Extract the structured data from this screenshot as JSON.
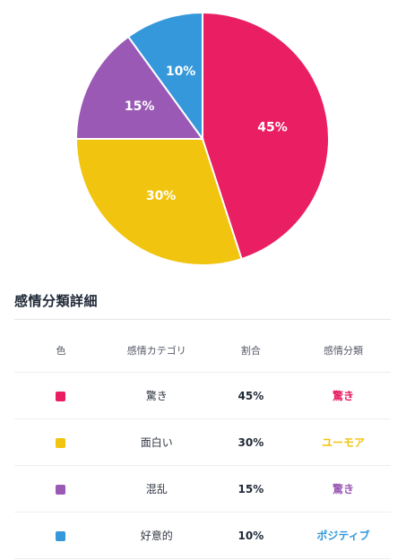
{
  "chart_data": {
    "type": "pie",
    "slices": [
      {
        "label": "驚き",
        "value": 45,
        "color": "#E91E63",
        "display": "45%"
      },
      {
        "label": "面白い",
        "value": 30,
        "color": "#F1C40F",
        "display": "30%"
      },
      {
        "label": "混乱",
        "value": 15,
        "color": "#9B59B6",
        "display": "15%"
      },
      {
        "label": "好意的",
        "value": 10,
        "color": "#3498DB",
        "display": "10%"
      }
    ]
  },
  "details": {
    "title": "感情分類詳細",
    "headers": {
      "color": "色",
      "category": "感情カテゴリ",
      "ratio": "割合",
      "classification": "感情分類"
    },
    "rows": [
      {
        "color": "#E91E63",
        "category": "驚き",
        "ratio": "45%",
        "classification": "驚き",
        "class_color": "#E91E63"
      },
      {
        "color": "#F1C40F",
        "category": "面白い",
        "ratio": "30%",
        "classification": "ユーモア",
        "class_color": "#F1C40F"
      },
      {
        "color": "#9B59B6",
        "category": "混乱",
        "ratio": "15%",
        "classification": "驚き",
        "class_color": "#9B59B6"
      },
      {
        "color": "#3498DB",
        "category": "好意的",
        "ratio": "10%",
        "classification": "ポジティブ",
        "class_color": "#3498DB"
      }
    ]
  }
}
